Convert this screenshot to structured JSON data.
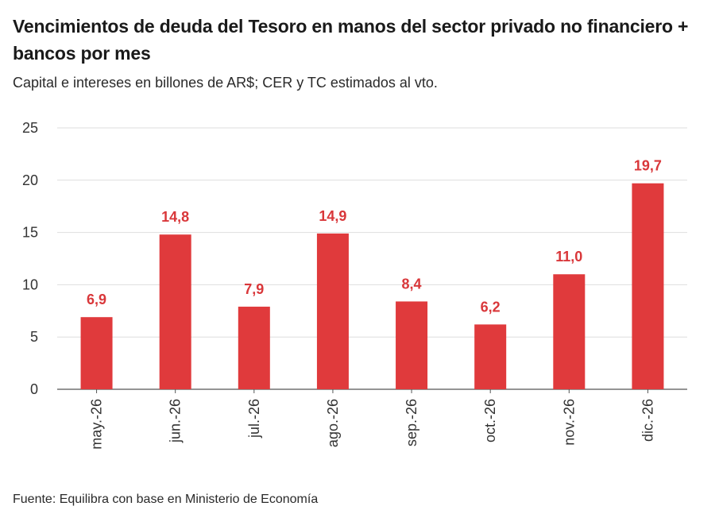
{
  "chart_data": {
    "type": "bar",
    "title": "Vencimientos de deuda del Tesoro en manos del sector privado no financiero + bancos por mes",
    "subtitle": "Capital e intereses en billones de AR$; CER y TC estimados al vto.",
    "source": "Fuente: Equilibra con base en Ministerio de Economía",
    "categories": [
      "may.-26",
      "jun.-26",
      "jul.-26",
      "ago.-26",
      "sep.-26",
      "oct.-26",
      "nov.-26",
      "dic.-26"
    ],
    "values": [
      6.9,
      14.8,
      7.9,
      14.9,
      8.4,
      6.2,
      11.0,
      19.7
    ],
    "data_labels": [
      "6,9",
      "14,8",
      "7,9",
      "14,9",
      "8,4",
      "6,2",
      "11,0",
      "19,7"
    ],
    "ylim": [
      0,
      25
    ],
    "yticks": [
      0,
      5,
      10,
      15,
      20,
      25
    ],
    "ytick_labels": [
      "0",
      "5",
      "10",
      "15",
      "20",
      "25"
    ],
    "xlabel": "",
    "ylabel": "",
    "grid": true,
    "bar_color": "#e03a3c",
    "label_color": "#d9373a"
  }
}
